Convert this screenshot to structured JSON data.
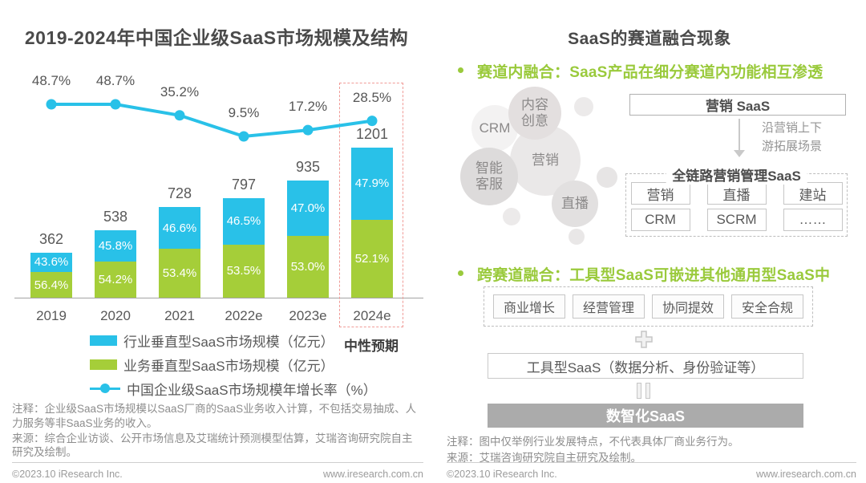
{
  "left": {
    "forecast_box_color": "#f09b97",
    "legend": [
      {
        "label": "行业垂直型SaaS市场规模（亿元）",
        "color": "#29c1e8",
        "type": "bar"
      },
      {
        "label": "业务垂直型SaaS市场规模（亿元）",
        "color": "#a5ce39",
        "type": "bar"
      },
      {
        "label": "中国企业级SaaS市场规模年增长率（%）",
        "color": "#29c1e8",
        "type": "line"
      }
    ],
    "notes": [
      "注释：企业级SaaS市场规模以SaaS厂商的SaaS业务收入计算，不包括交易抽成、人力服务等非SaaS业务的收入。",
      "来源：综合企业访谈、公开市场信息及艾瑞统计预测模型估算，艾瑞咨询研究院自主研究及绘制。"
    ],
    "footer": {
      "copyright": "©2023.10 iResearch Inc.",
      "website": "www.iresearch.com.cn"
    }
  },
  "chart_data": {
    "type": "stacked-bar+line",
    "title": "2019-2024年中国企业级SaaS市场规模及结构",
    "categories": [
      "2019",
      "2020",
      "2021",
      "2022e",
      "2023e",
      "2024e"
    ],
    "totals": [
      362,
      538,
      728,
      797,
      935,
      1201
    ],
    "unit": "亿元",
    "series": [
      {
        "name": "行业垂直型SaaS市场规模（亿元）",
        "type": "bar",
        "color": "#29c1e8",
        "share_pct": [
          43.6,
          45.8,
          46.6,
          46.5,
          47.0,
          47.9
        ]
      },
      {
        "name": "业务垂直型SaaS市场规模（亿元）",
        "type": "bar",
        "color": "#a5ce39",
        "share_pct": [
          56.4,
          54.2,
          53.4,
          53.5,
          53.0,
          52.1
        ]
      },
      {
        "name": "中国企业级SaaS市场规模年增长率（%）",
        "type": "line",
        "color": "#29c1e8",
        "values": [
          48.7,
          48.7,
          35.2,
          9.5,
          17.2,
          28.5
        ]
      }
    ],
    "forecast": {
      "category": "2024e",
      "note": "中性预期"
    },
    "legend_position": "bottom-left",
    "grid": false
  },
  "right": {
    "title": "SaaS的赛道融合现象",
    "accent_green": "#9aca3c",
    "digital_box_bg": "#ababab",
    "section1": {
      "heading": "赛道内融合：SaaS产品在细分赛道内功能相互渗透",
      "bubbles": [
        "内容创意",
        "CRM",
        "营销",
        "智能客服",
        "直播"
      ],
      "marketing_box": "营销 SaaS",
      "arrow_note": "沿营销上下\n游拓展场景",
      "full_chain": {
        "title": "全链路营销管理SaaS",
        "items": [
          "营销",
          "直播",
          "建站",
          "CRM",
          "SCRM",
          "……"
        ]
      }
    },
    "section2": {
      "heading": "跨赛道融合：工具型SaaS可嵌进其他通用型SaaS中",
      "generic_tracks": [
        "商业增长",
        "经营管理",
        "协同提效",
        "安全合规"
      ],
      "tool_box": "工具型SaaS（数据分析、身份验证等）",
      "digital_box": "数智化SaaS"
    },
    "notes": [
      "注释：图中仅举例行业发展特点，不代表具体厂商业务行为。",
      "来源：艾瑞咨询研究院自主研究及绘制。"
    ],
    "footer": {
      "copyright": "©2023.10 iResearch Inc.",
      "website": "www.iresearch.com.cn"
    }
  }
}
